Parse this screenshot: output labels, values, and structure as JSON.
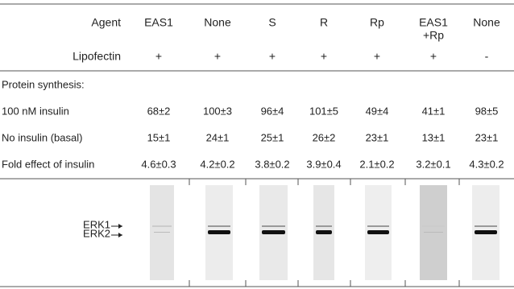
{
  "table": {
    "header": {
      "label": "Agent",
      "columns": [
        [
          "EAS1"
        ],
        [
          "None"
        ],
        [
          "S"
        ],
        [
          "R"
        ],
        [
          "Rp"
        ],
        [
          "EAS1",
          "+Rp"
        ],
        [
          "None"
        ]
      ]
    },
    "lipofectin": {
      "label": "Lipofectin",
      "cells": [
        "+",
        "+",
        "+",
        "+",
        "+",
        "+",
        "-"
      ]
    },
    "section": "Protein synthesis:",
    "rows": [
      {
        "label": "100 nM insulin",
        "cells": [
          "68±2",
          "100±3",
          "96±4",
          "101±5",
          "49±4",
          "41±1",
          "98±5"
        ]
      },
      {
        "label": "No insulin (basal)",
        "cells": [
          "15±1",
          "24±1",
          "25±1",
          "26±2",
          "23±1",
          "13±1",
          "23±1"
        ]
      },
      {
        "label": "Fold effect of insulin",
        "cells": [
          "4.6±0.3",
          "4.2±0.2",
          "3.8±0.2",
          "3.9±0.4",
          "2.1±0.2",
          "3.2±0.1",
          "4.3±0.2"
        ]
      }
    ]
  },
  "blot": {
    "labels": [
      "ERK1",
      "ERK2"
    ]
  }
}
